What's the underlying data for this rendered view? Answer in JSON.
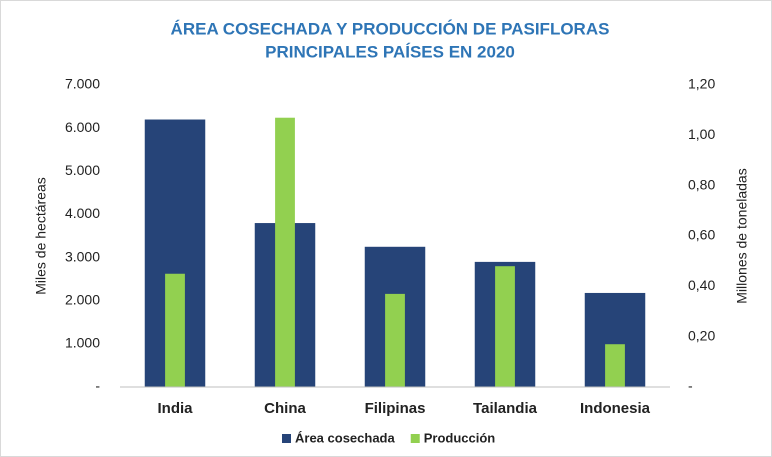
{
  "chart_data": {
    "type": "bar",
    "title": [
      "ÁREA COSECHADA Y PRODUCCIÓN DE PASIFLORAS",
      "PRINCIPALES PAÍSES EN 2020"
    ],
    "y_label": "Miles de hectáreas",
    "y2_label": "Millones de toneladas",
    "categories": [
      "India",
      "China",
      "Filipinas",
      "Tailandia",
      "Indonesia"
    ],
    "series": [
      {
        "name": "Área cosechada",
        "color": "#264478",
        "values": [
          6200,
          3800,
          3250,
          2900,
          2180
        ]
      },
      {
        "name": "Producción",
        "color": "#92d050",
        "axis": "y2",
        "values": [
          0.45,
          1.07,
          0.37,
          0.48,
          0.17
        ]
      }
    ],
    "ylim": [
      0,
      7000
    ],
    "yticks": [
      {
        "value": 0,
        "label": "-"
      },
      {
        "value": 1000,
        "label": "1.000"
      },
      {
        "value": 2000,
        "label": "2.000"
      },
      {
        "value": 3000,
        "label": "3.000"
      },
      {
        "value": 4000,
        "label": "4.000"
      },
      {
        "value": 5000,
        "label": "5.000"
      },
      {
        "value": 6000,
        "label": "6.000"
      },
      {
        "value": 7000,
        "label": "7.000"
      }
    ],
    "y2lim": [
      0,
      1.2
    ],
    "y2ticks": [
      {
        "value": 0,
        "label": "-"
      },
      {
        "value": 0.2,
        "label": "0,20"
      },
      {
        "value": 0.4,
        "label": "0,40"
      },
      {
        "value": 0.6,
        "label": "0,60"
      },
      {
        "value": 0.8,
        "label": "0,80"
      },
      {
        "value": 1.0,
        "label": "1,00"
      },
      {
        "value": 1.2,
        "label": "1,20"
      }
    ],
    "grid": false,
    "legend": "bottom"
  }
}
